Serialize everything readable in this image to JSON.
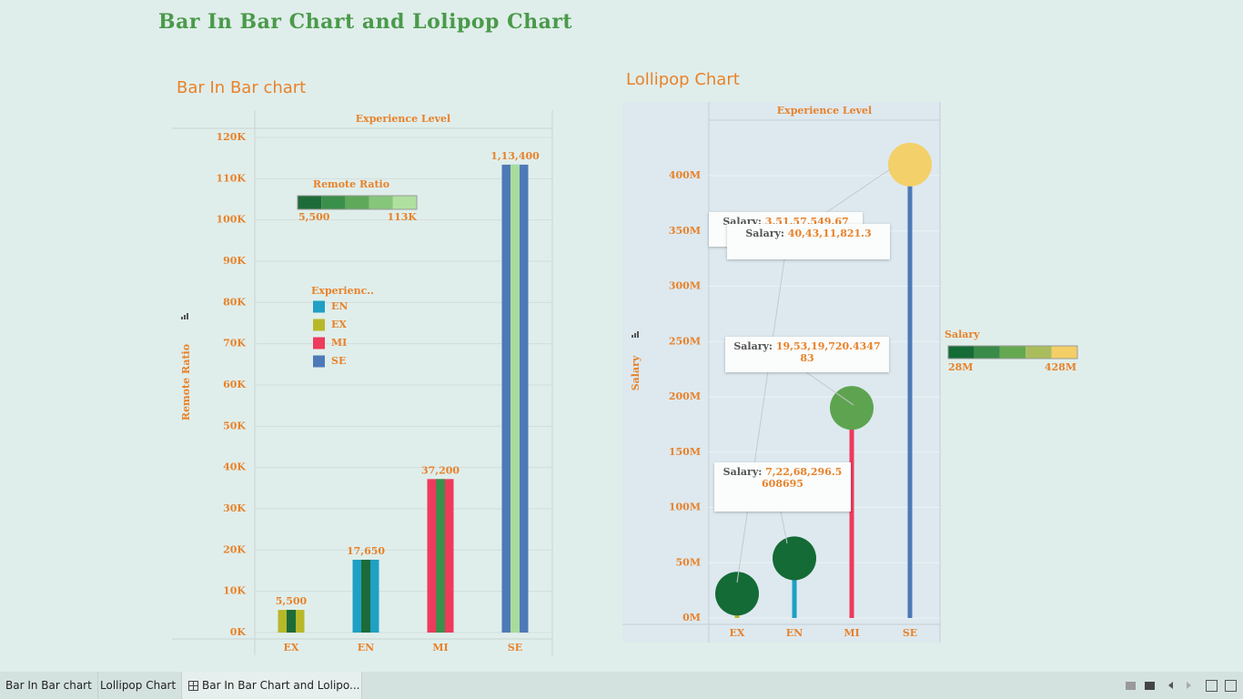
{
  "title": "Bar In Bar Chart and Lolipop Chart",
  "tabs": [
    "Bar In Bar chart",
    "Lollipop Chart",
    "Bar In Bar Chart and Lolipo..."
  ],
  "chart_data": [
    {
      "type": "bar_in_bar",
      "title": "Bar In Bar chart",
      "header": "Experience Level",
      "y_label": "Remote Ratio",
      "categories": [
        "EX",
        "EN",
        "MI",
        "SE"
      ],
      "values": [
        5500,
        17650,
        37200,
        113400
      ],
      "value_labels": [
        "5,500",
        "17,650",
        "37,200",
        "1,13,400"
      ],
      "colors": [
        "#b7b829",
        "#1fa0c4",
        "#ee3a5c",
        "#4e79b8"
      ],
      "inner_colors": [
        "#1e6b3a",
        "#1e6b3a",
        "#3a8f4a",
        "#a8dc9c"
      ],
      "ylim": [
        0,
        120000
      ],
      "yticks": [
        {
          "value": 0,
          "label": "0K"
        },
        {
          "value": 10000,
          "label": "10K"
        },
        {
          "value": 20000,
          "label": "20K"
        },
        {
          "value": 30000,
          "label": "30K"
        },
        {
          "value": 40000,
          "label": "40K"
        },
        {
          "value": 50000,
          "label": "50K"
        },
        {
          "value": 60000,
          "label": "60K"
        },
        {
          "value": 70000,
          "label": "70K"
        },
        {
          "value": 80000,
          "label": "80K"
        },
        {
          "value": 90000,
          "label": "90K"
        },
        {
          "value": 100000,
          "label": "100K"
        },
        {
          "value": 110000,
          "label": "110K"
        },
        {
          "value": 120000,
          "label": "120K"
        }
      ],
      "grid": true,
      "color_legend": {
        "title": "Remote Ratio",
        "colors": [
          "#1e6b3a",
          "#3a8f4a",
          "#5ea95a",
          "#86c67a",
          "#b0e0a0"
        ],
        "min_label": "5,500",
        "max_label": "113K"
      },
      "legend": {
        "title": "Experienc..",
        "items": [
          {
            "name": "EN",
            "color": "#1fa0c4"
          },
          {
            "name": "EX",
            "color": "#b7b829"
          },
          {
            "name": "MI",
            "color": "#ee3a5c"
          },
          {
            "name": "SE",
            "color": "#4e79b8"
          }
        ]
      }
    },
    {
      "type": "lollipop",
      "title": "Lollipop Chart",
      "header": "Experience Level",
      "y_label": "Salary",
      "categories": [
        "EX",
        "EN",
        "MI",
        "SE"
      ],
      "values": [
        22000000,
        54000000,
        190000000,
        410000000
      ],
      "colors": [
        "#b7b829",
        "#1fa0c4",
        "#ee3a5c",
        "#4e79b8"
      ],
      "circle_colors": [
        "#146b35",
        "#146b35",
        "#5ea450",
        "#f4d06a"
      ],
      "ylim": [
        -6000000,
        448000000
      ],
      "yticks": [
        {
          "value": 0,
          "label": "0M"
        },
        {
          "value": 50000000,
          "label": "50M"
        },
        {
          "value": 100000000,
          "label": "100M"
        },
        {
          "value": 150000000,
          "label": "150M"
        },
        {
          "value": 200000000,
          "label": "200M"
        },
        {
          "value": 250000000,
          "label": "250M"
        },
        {
          "value": 300000000,
          "label": "300M"
        },
        {
          "value": 350000000,
          "label": "350M"
        },
        {
          "value": 400000000,
          "label": "400M"
        }
      ],
      "grid": true,
      "color_legend": {
        "title": "Salary",
        "colors": [
          "#146b35",
          "#3a8a48",
          "#66a852",
          "#a9bd5c",
          "#f4ce66"
        ],
        "min_label": "28M",
        "max_label": "428M"
      },
      "annotations": [
        {
          "label": "Salary:",
          "value": "3,51,57,549.67"
        },
        {
          "label": "Salary:",
          "value": "40,43,11,821.3"
        },
        {
          "label": "Salary:",
          "value": "19,53,19,720.434783"
        },
        {
          "label": "Salary:",
          "value": "7,22,68,296.5608695"
        }
      ]
    }
  ]
}
